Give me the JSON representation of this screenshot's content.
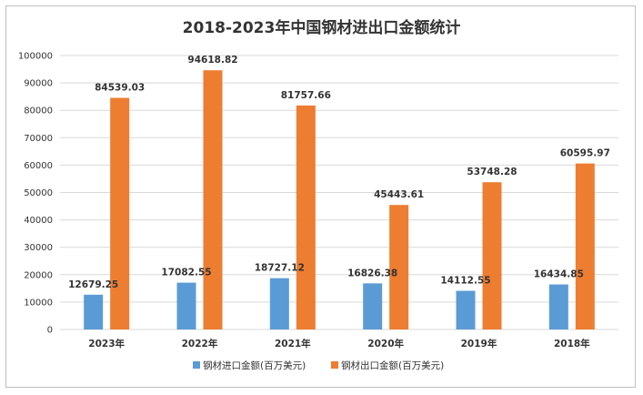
{
  "chart_data": {
    "type": "bar",
    "title": "2018-2023年中国钢材进出口金额统计",
    "categories": [
      "2023年",
      "2022年",
      "2021年",
      "2020年",
      "2019年",
      "2018年"
    ],
    "ylim": [
      0,
      100000
    ],
    "yticks": [
      0,
      10000,
      20000,
      30000,
      40000,
      50000,
      60000,
      70000,
      80000,
      90000,
      100000
    ],
    "grid": true,
    "legend_position": "bottom",
    "series": [
      {
        "name": "钢材进口金额(百万美元)",
        "color": "#5b9bd5",
        "values": [
          12679.25,
          17082.55,
          18727.12,
          16826.38,
          14112.55,
          16434.85
        ],
        "labels": [
          "12679.25",
          "17082.55",
          "18727.12",
          "16826.38",
          "14112.55",
          "16434.85"
        ]
      },
      {
        "name": "钢材出口金额(百万美元)",
        "color": "#ed7d31",
        "values": [
          84539.03,
          94618.82,
          81757.66,
          45443.61,
          53748.28,
          60595.97
        ],
        "labels": [
          "84539.03",
          "94618.82",
          "81757.66",
          "45443.61",
          "53748.28",
          "60595.97"
        ]
      }
    ]
  }
}
